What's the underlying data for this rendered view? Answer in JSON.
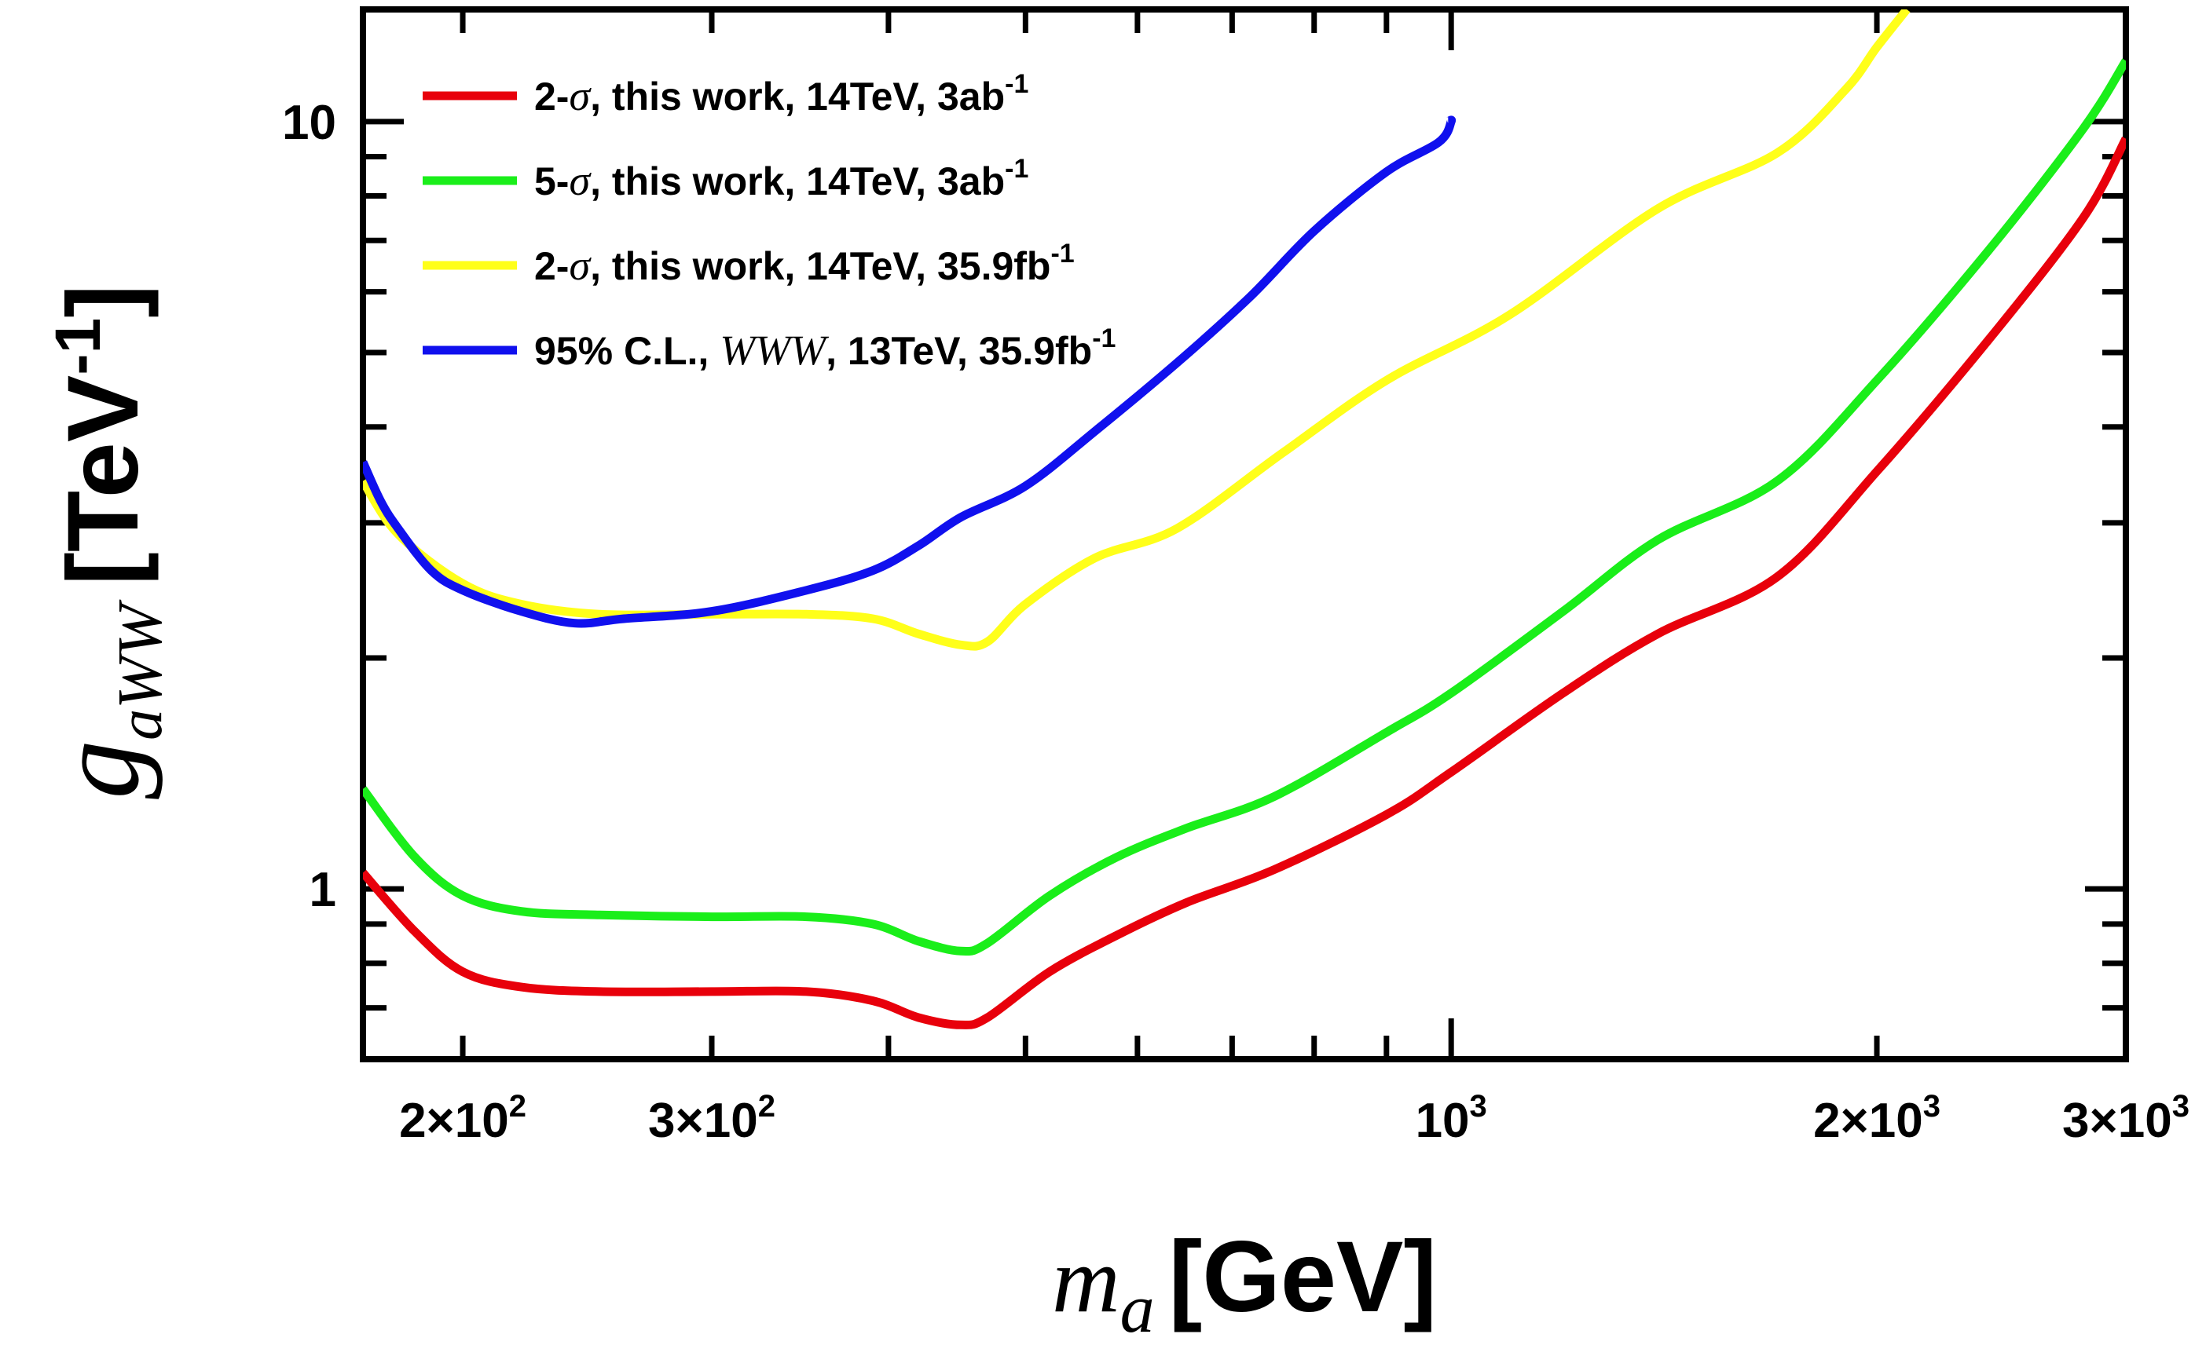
{
  "chart_data": {
    "type": "line",
    "x_scale": "log",
    "y_scale": "log",
    "xlim": [
      170,
      3000
    ],
    "ylim": [
      0.6,
      14
    ],
    "xlabel": {
      "symbol": "m",
      "sub": "a",
      "unit": "[GeV]"
    },
    "ylabel": {
      "symbol": "g",
      "sub": "aWW",
      "unit_base": "[TeV",
      "unit_sup": "-1",
      "unit_end": "]"
    },
    "x_tick_labels": [
      {
        "value": 200,
        "mant": "2×10",
        "exp": "2"
      },
      {
        "value": 300,
        "mant": "3×10",
        "exp": "2"
      },
      {
        "value": 1000,
        "mant": "10",
        "exp": "3"
      },
      {
        "value": 2000,
        "mant": "2×10",
        "exp": "3"
      },
      {
        "value": 3000,
        "mant": "3×10",
        "exp": "3"
      }
    ],
    "y_tick_labels": [
      {
        "value": 1,
        "label": "1"
      },
      {
        "value": 10,
        "label": "10"
      }
    ],
    "legend_position": "top-left",
    "series": [
      {
        "name": "2-σ, this work, 14TeV, 3ab-1",
        "legend": {
          "pre": "2-",
          "italic": "σ",
          "post": ", this work, 14TeV, 3ab",
          "sup": "-1"
        },
        "color": "#e8000b",
        "x": [
          170,
          185,
          200,
          220,
          250,
          300,
          350,
          390,
          420,
          450,
          470,
          520,
          580,
          650,
          750,
          900,
          1000,
          1200,
          1400,
          1700,
          2000,
          2400,
          2800,
          3000
        ],
        "y": [
          1.05,
          0.88,
          0.78,
          0.745,
          0.735,
          0.735,
          0.735,
          0.715,
          0.68,
          0.665,
          0.68,
          0.78,
          0.87,
          0.96,
          1.06,
          1.25,
          1.42,
          1.8,
          2.15,
          2.55,
          3.5,
          5.2,
          7.5,
          9.5
        ]
      },
      {
        "name": "5-σ, this work, 14TeV, 3ab-1",
        "legend": {
          "pre": "5-",
          "italic": "σ",
          "post": ", this work, 14TeV, 3ab",
          "sup": "-1"
        },
        "color": "#1aee1a",
        "x": [
          170,
          185,
          200,
          220,
          250,
          300,
          350,
          390,
          420,
          450,
          470,
          520,
          580,
          650,
          750,
          900,
          1000,
          1200,
          1400,
          1700,
          2000,
          2400,
          2800,
          3000
        ],
        "y": [
          1.35,
          1.1,
          0.98,
          0.935,
          0.925,
          0.92,
          0.92,
          0.9,
          0.855,
          0.83,
          0.85,
          0.98,
          1.1,
          1.2,
          1.32,
          1.6,
          1.8,
          2.3,
          2.85,
          3.4,
          4.6,
          6.8,
          9.8,
          12
        ]
      },
      {
        "name": "2-σ, this work, 14TeV, 35.9fb-1",
        "legend": {
          "pre": "2-",
          "italic": "σ",
          "post": ", this work, 14TeV, 35.9fb",
          "sup": "-1"
        },
        "color": "#ffff1a",
        "x": [
          170,
          180,
          200,
          220,
          250,
          300,
          350,
          390,
          420,
          450,
          470,
          500,
          560,
          640,
          760,
          900,
          1100,
          1400,
          1700,
          1900,
          2000,
          2100
        ],
        "y": [
          3.4,
          2.9,
          2.5,
          2.35,
          2.28,
          2.28,
          2.28,
          2.25,
          2.15,
          2.08,
          2.1,
          2.35,
          2.7,
          2.95,
          3.7,
          4.6,
          5.6,
          7.7,
          9.1,
          11,
          12.5,
          14
        ]
      },
      {
        "name": "95% C.L., WWW, 13TeV, 35.9fb-1",
        "legend": {
          "pre": "95% C.L., ",
          "italic": "WWW",
          "post": ", 13TeV, 35.9fb",
          "sup": "-1"
        },
        "color": "#1010ee",
        "x": [
          170,
          175,
          180,
          190,
          200,
          220,
          240,
          260,
          300,
          350,
          390,
          420,
          450,
          500,
          560,
          640,
          720,
          800,
          900,
          980,
          1000,
          995
        ],
        "y": [
          3.6,
          3.2,
          2.95,
          2.6,
          2.45,
          2.3,
          2.22,
          2.25,
          2.3,
          2.45,
          2.6,
          2.8,
          3.05,
          3.35,
          3.95,
          4.85,
          5.9,
          7.2,
          8.6,
          9.4,
          10,
          10
        ]
      }
    ]
  }
}
